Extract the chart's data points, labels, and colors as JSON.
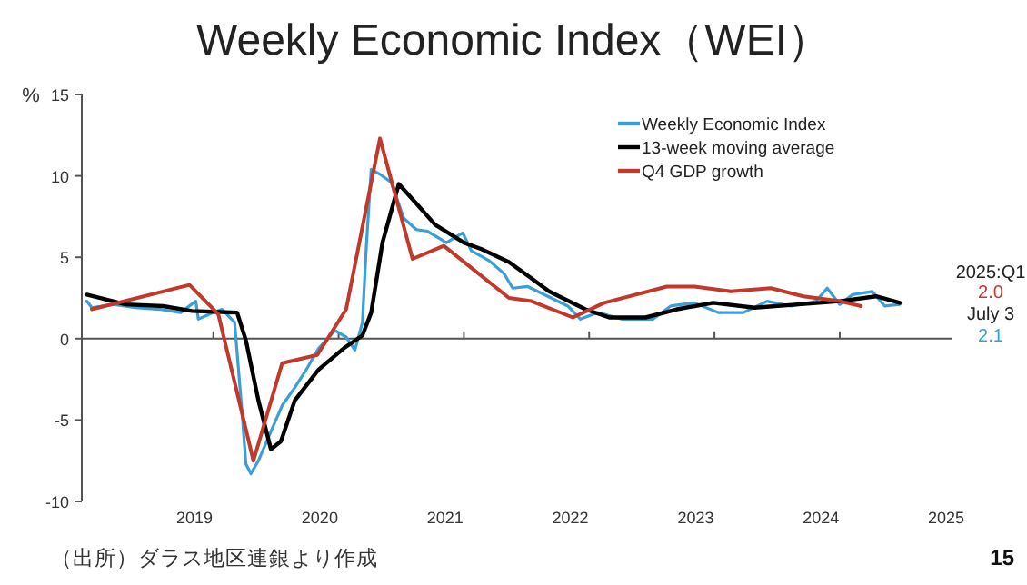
{
  "chart_data": {
    "type": "line",
    "title": "Weekly Economic Index（WEI）",
    "ylabel": "%",
    "xlim": [
      2018.1,
      2025.05
    ],
    "ylim": [
      -10,
      15
    ],
    "yticks": [
      -10,
      -5,
      0,
      5,
      10,
      15
    ],
    "xticks": [
      2019,
      2020,
      2021,
      2022,
      2023,
      2024,
      2025,
      {
        "value": 2019.15,
        "label": null
      },
      {
        "value": 2020.15,
        "label": null
      },
      {
        "value": 2021.15,
        "label": null
      },
      {
        "value": 2022.15,
        "label": null
      },
      {
        "value": 2023.15,
        "label": null
      },
      {
        "value": 2024.15,
        "label": null
      }
    ],
    "legend": "top right",
    "series": [
      {
        "name": "Weekly Economic Index",
        "color": "#3a9fd6",
        "x": [
          2018.14,
          2018.18,
          2018.35,
          2018.53,
          2018.72,
          2018.89,
          2019.01,
          2019.03,
          2019.15,
          2019.22,
          2019.32,
          2019.38,
          2019.41,
          2019.45,
          2019.51,
          2019.61,
          2019.7,
          2019.8,
          2019.9,
          2019.99,
          2020.12,
          2020.21,
          2020.28,
          2020.34,
          2020.37,
          2020.41,
          2020.48,
          2020.57,
          2020.67,
          2020.77,
          2020.86,
          2021.01,
          2021.14,
          2021.21,
          2021.35,
          2021.47,
          2021.54,
          2021.66,
          2021.98,
          2022.08,
          2022.22,
          2022.41,
          2022.66,
          2022.8,
          2022.99,
          2023.18,
          2023.38,
          2023.57,
          2023.76,
          2023.96,
          2024.05,
          2024.15,
          2024.25,
          2024.41,
          2024.51,
          2024.63
        ],
        "values": [
          2.3,
          1.9,
          2.1,
          1.9,
          1.8,
          1.6,
          2.3,
          1.2,
          1.6,
          1.8,
          1.0,
          -4.6,
          -7.7,
          -8.3,
          -7.5,
          -5.7,
          -4.1,
          -3.0,
          -1.8,
          -0.6,
          0.5,
          0.1,
          -0.7,
          1.0,
          5.5,
          10.4,
          10.1,
          9.6,
          7.4,
          6.7,
          6.6,
          5.9,
          6.5,
          5.4,
          4.8,
          4.0,
          3.1,
          3.2,
          2.0,
          1.2,
          1.6,
          1.2,
          1.2,
          2.0,
          2.2,
          1.6,
          1.6,
          2.3,
          2.0,
          2.3,
          3.1,
          2.1,
          2.7,
          2.9,
          2.0,
          2.1
        ]
      },
      {
        "name": "13-week moving average",
        "color": "#000000",
        "x": [
          2018.14,
          2018.45,
          2018.75,
          2018.98,
          2019.34,
          2019.41,
          2019.51,
          2019.61,
          2019.69,
          2019.8,
          2019.99,
          2020.19,
          2020.34,
          2020.41,
          2020.5,
          2020.63,
          2020.77,
          2020.92,
          2021.15,
          2021.29,
          2021.51,
          2021.69,
          2021.83,
          2022.12,
          2022.31,
          2022.6,
          2022.85,
          2023.14,
          2023.47,
          2023.82,
          2024.15,
          2024.44,
          2024.63
        ],
        "values": [
          2.7,
          2.1,
          2.0,
          1.7,
          1.6,
          -0.1,
          -3.8,
          -6.8,
          -6.3,
          -3.8,
          -1.9,
          -0.6,
          0.2,
          1.6,
          5.9,
          9.5,
          8.3,
          7.0,
          5.9,
          5.5,
          4.7,
          3.7,
          2.9,
          1.8,
          1.3,
          1.3,
          1.8,
          2.2,
          1.9,
          2.1,
          2.3,
          2.6,
          2.2
        ]
      },
      {
        "name": "Q4 GDP growth",
        "color": "#c0392b",
        "x": [
          2018.18,
          2018.96,
          2019.19,
          2019.47,
          2019.7,
          2019.98,
          2020.21,
          2020.48,
          2020.74,
          2020.99,
          2021.51,
          2021.69,
          2022.02,
          2022.27,
          2022.77,
          2022.99,
          2023.28,
          2023.6,
          2023.86,
          2024.15,
          2024.32
        ],
        "values": [
          1.8,
          3.3,
          1.5,
          -7.5,
          -1.5,
          -1.0,
          1.8,
          12.3,
          4.9,
          5.7,
          2.5,
          2.3,
          1.3,
          2.2,
          3.2,
          3.2,
          2.9,
          3.1,
          2.6,
          2.3,
          2.0
        ]
      }
    ],
    "annotations": [
      "2025:Q1",
      "2.0",
      "July 3",
      "2.1",
      "（出所）ダラス地区連銀より作成",
      "15"
    ]
  }
}
